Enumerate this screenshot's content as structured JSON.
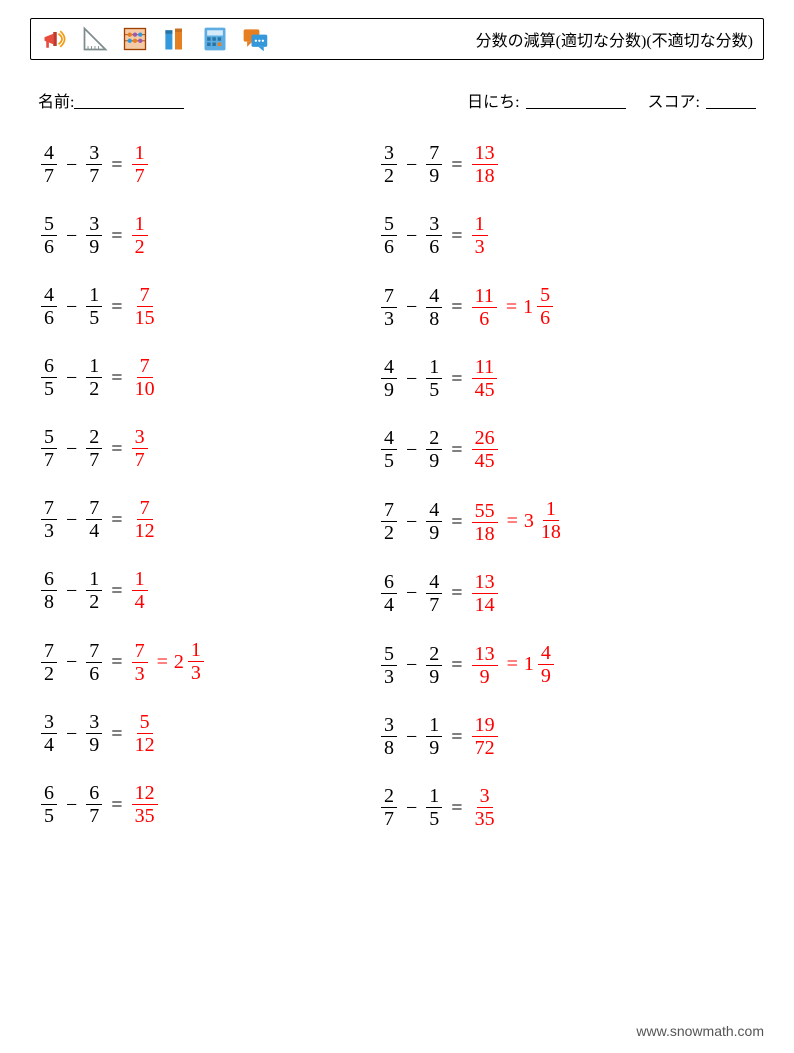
{
  "header": {
    "title": "分数の減算(適切な分数)(不適切な分数)",
    "icons": [
      "megaphone-icon",
      "ruler-icon",
      "abacus-icon",
      "books-icon",
      "calculator-icon",
      "chat-icon"
    ],
    "icon_colors": {
      "megaphone": [
        "#e74c3c",
        "#f39c12"
      ],
      "ruler": "#7f8c8d",
      "abacus": [
        "#e67e22",
        "#9b59b6",
        "#3498db"
      ],
      "books": [
        "#3498db",
        "#e67e22"
      ],
      "calculator": [
        "#5dade2",
        "#2874a6"
      ],
      "chat": [
        "#e67e22",
        "#3498db"
      ]
    }
  },
  "info": {
    "name_label": "名前:",
    "date_label": "日にち:",
    "score_label": "スコア:",
    "blanks": {
      "name_w": 110,
      "date_w": 100,
      "score_w": 50
    }
  },
  "style": {
    "answer_color": "#ff0000",
    "text_color": "#000000",
    "font_size_problem": 20,
    "row_gap": 26,
    "col_left_width": 340
  },
  "problems": {
    "left": [
      {
        "a": [
          4,
          7
        ],
        "b": [
          3,
          7
        ],
        "ans": [
          1,
          7
        ]
      },
      {
        "a": [
          5,
          6
        ],
        "b": [
          3,
          9
        ],
        "ans": [
          1,
          2
        ]
      },
      {
        "a": [
          4,
          6
        ],
        "b": [
          1,
          5
        ],
        "ans": [
          7,
          15
        ]
      },
      {
        "a": [
          6,
          5
        ],
        "b": [
          1,
          2
        ],
        "ans": [
          7,
          10
        ]
      },
      {
        "a": [
          5,
          7
        ],
        "b": [
          2,
          7
        ],
        "ans": [
          3,
          7
        ]
      },
      {
        "a": [
          7,
          3
        ],
        "b": [
          7,
          4
        ],
        "ans": [
          7,
          12
        ]
      },
      {
        "a": [
          6,
          8
        ],
        "b": [
          1,
          2
        ],
        "ans": [
          1,
          4
        ]
      },
      {
        "a": [
          7,
          2
        ],
        "b": [
          7,
          6
        ],
        "ans": [
          7,
          3
        ],
        "mixed": [
          2,
          1,
          3
        ]
      },
      {
        "a": [
          3,
          4
        ],
        "b": [
          3,
          9
        ],
        "ans": [
          5,
          12
        ]
      },
      {
        "a": [
          6,
          5
        ],
        "b": [
          6,
          7
        ],
        "ans": [
          12,
          35
        ]
      }
    ],
    "right": [
      {
        "a": [
          3,
          2
        ],
        "b": [
          7,
          9
        ],
        "ans": [
          13,
          18
        ]
      },
      {
        "a": [
          5,
          6
        ],
        "b": [
          3,
          6
        ],
        "ans": [
          1,
          3
        ]
      },
      {
        "a": [
          7,
          3
        ],
        "b": [
          4,
          8
        ],
        "ans": [
          11,
          6
        ],
        "mixed": [
          1,
          5,
          6
        ]
      },
      {
        "a": [
          4,
          9
        ],
        "b": [
          1,
          5
        ],
        "ans": [
          11,
          45
        ]
      },
      {
        "a": [
          4,
          5
        ],
        "b": [
          2,
          9
        ],
        "ans": [
          26,
          45
        ]
      },
      {
        "a": [
          7,
          2
        ],
        "b": [
          4,
          9
        ],
        "ans": [
          55,
          18
        ],
        "mixed": [
          3,
          1,
          18
        ]
      },
      {
        "a": [
          6,
          4
        ],
        "b": [
          4,
          7
        ],
        "ans": [
          13,
          14
        ]
      },
      {
        "a": [
          5,
          3
        ],
        "b": [
          2,
          9
        ],
        "ans": [
          13,
          9
        ],
        "mixed": [
          1,
          4,
          9
        ]
      },
      {
        "a": [
          3,
          8
        ],
        "b": [
          1,
          9
        ],
        "ans": [
          19,
          72
        ]
      },
      {
        "a": [
          2,
          7
        ],
        "b": [
          1,
          5
        ],
        "ans": [
          3,
          35
        ]
      }
    ]
  },
  "footer": {
    "text": "www.snowmath.com"
  }
}
